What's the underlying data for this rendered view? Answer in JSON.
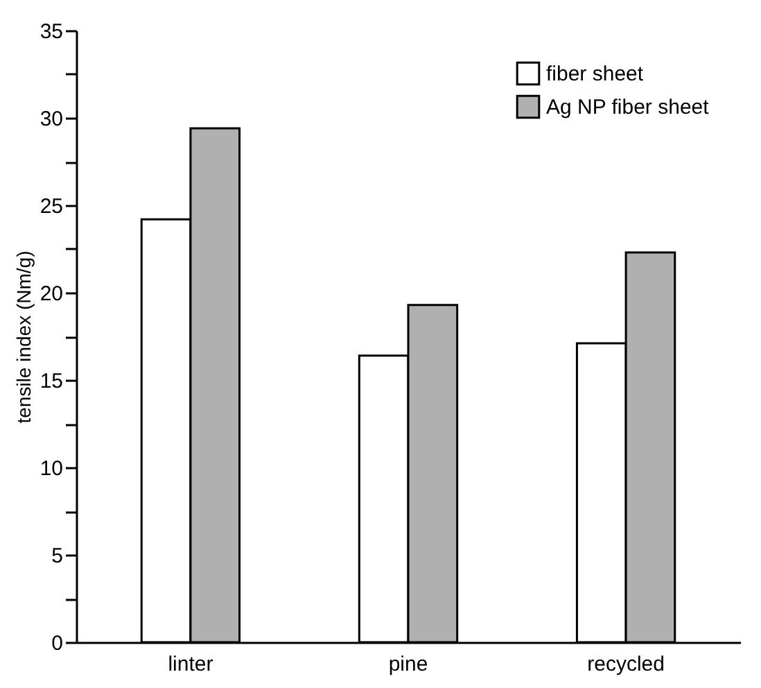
{
  "chart_data": {
    "type": "bar",
    "ylabel": "tensile index (Nm/g)",
    "categories": [
      "linter",
      "pine",
      "recycled"
    ],
    "series": [
      {
        "name": "fiber sheet",
        "color": "#ffffff",
        "values": [
          24.2,
          16.4,
          17.1
        ]
      },
      {
        "name": "Ag NP fiber sheet",
        "color": "#b0b0b0",
        "values": [
          29.4,
          19.3,
          22.3
        ]
      }
    ],
    "ylim": [
      0,
      35
    ],
    "yticks": [
      0,
      {
        "value": 2.5,
        "label": null
      },
      5,
      {
        "value": 7.5,
        "label": null
      },
      10,
      {
        "value": 12.5,
        "label": null
      },
      15,
      {
        "value": 17.5,
        "label": null
      },
      20,
      {
        "value": 22.5,
        "label": null
      },
      25,
      {
        "value": 27.5,
        "label": null
      },
      30,
      {
        "value": 32.5,
        "label": null
      },
      35
    ],
    "grid": false,
    "legend": "top right"
  }
}
